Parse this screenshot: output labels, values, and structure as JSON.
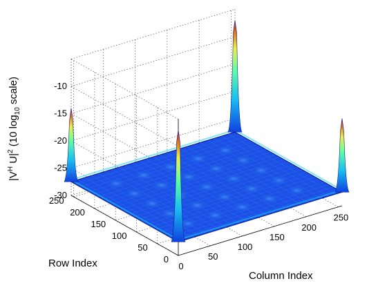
{
  "chart_data": {
    "type": "surface",
    "zlabel": "|V",
    "zlabel_sup1": "H",
    "zlabel_mid": " U|",
    "zlabel_sup2": "2",
    "zlabel_scale": " (10 log",
    "zlabel_sub": "10",
    "zlabel_end": " scale)",
    "xlabel": "Column Index",
    "ylabel": "Row Index",
    "xlim": [
      0,
      256
    ],
    "ylim": [
      0,
      256
    ],
    "zlim": [
      -30,
      -5
    ],
    "xticks": [
      "0",
      "50",
      "100",
      "150",
      "200",
      "250"
    ],
    "xtick_values": [
      0,
      50,
      100,
      150,
      200,
      250
    ],
    "yticks": [
      "0",
      "50",
      "100",
      "150",
      "200",
      "250"
    ],
    "ytick_values": [
      0,
      50,
      100,
      150,
      200,
      250
    ],
    "zticks": [
      "-30",
      "-25",
      "-20",
      "-15",
      "-10"
    ],
    "ztick_values": [
      -30,
      -25,
      -20,
      -15,
      -10
    ],
    "grid": true,
    "colormap": "jet",
    "floor_level": -27.5,
    "corner_peaks": [
      {
        "x": 0,
        "y": 0,
        "z": -7
      },
      {
        "x": 256,
        "y": 0,
        "z": -14
      },
      {
        "x": 0,
        "y": 256,
        "z": -14
      },
      {
        "x": 256,
        "y": 256,
        "z": -7
      }
    ]
  }
}
